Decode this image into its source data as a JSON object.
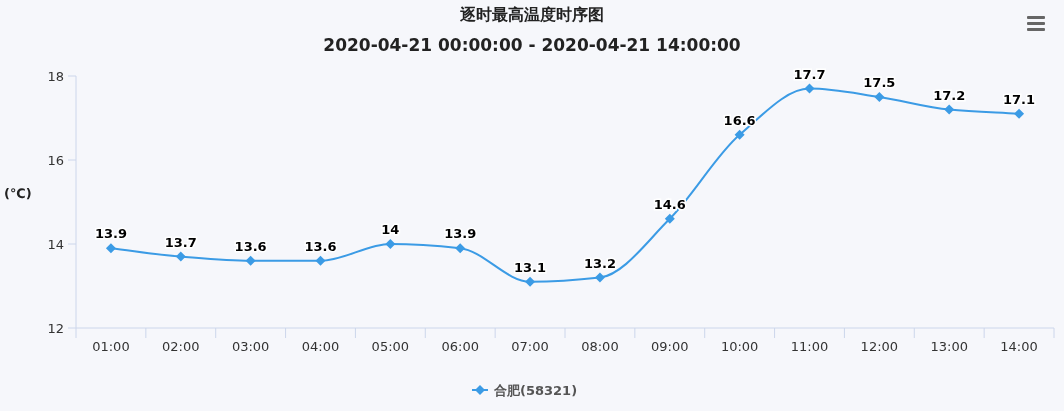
{
  "chart_data": {
    "type": "line",
    "title": "逐时最高温度时序图",
    "subtitle": "2020-04-21 00:00:00 - 2020-04-21 14:00:00",
    "ylabel": "(℃)",
    "categories": [
      "01:00",
      "02:00",
      "03:00",
      "04:00",
      "05:00",
      "06:00",
      "07:00",
      "08:00",
      "09:00",
      "10:00",
      "11:00",
      "12:00",
      "13:00",
      "14:00"
    ],
    "series": [
      {
        "name": "合肥(58321)",
        "color": "#3b9be5",
        "values": [
          13.9,
          13.7,
          13.6,
          13.6,
          14,
          13.9,
          13.1,
          13.2,
          14.6,
          16.6,
          17.7,
          17.5,
          17.2,
          17.1
        ]
      }
    ],
    "ylim": [
      12,
      18
    ],
    "yticks": [
      12,
      14,
      16,
      18
    ],
    "grid": false,
    "legend": "bottom",
    "marker": "diamond",
    "line_style": "solid",
    "data_labels": true
  }
}
